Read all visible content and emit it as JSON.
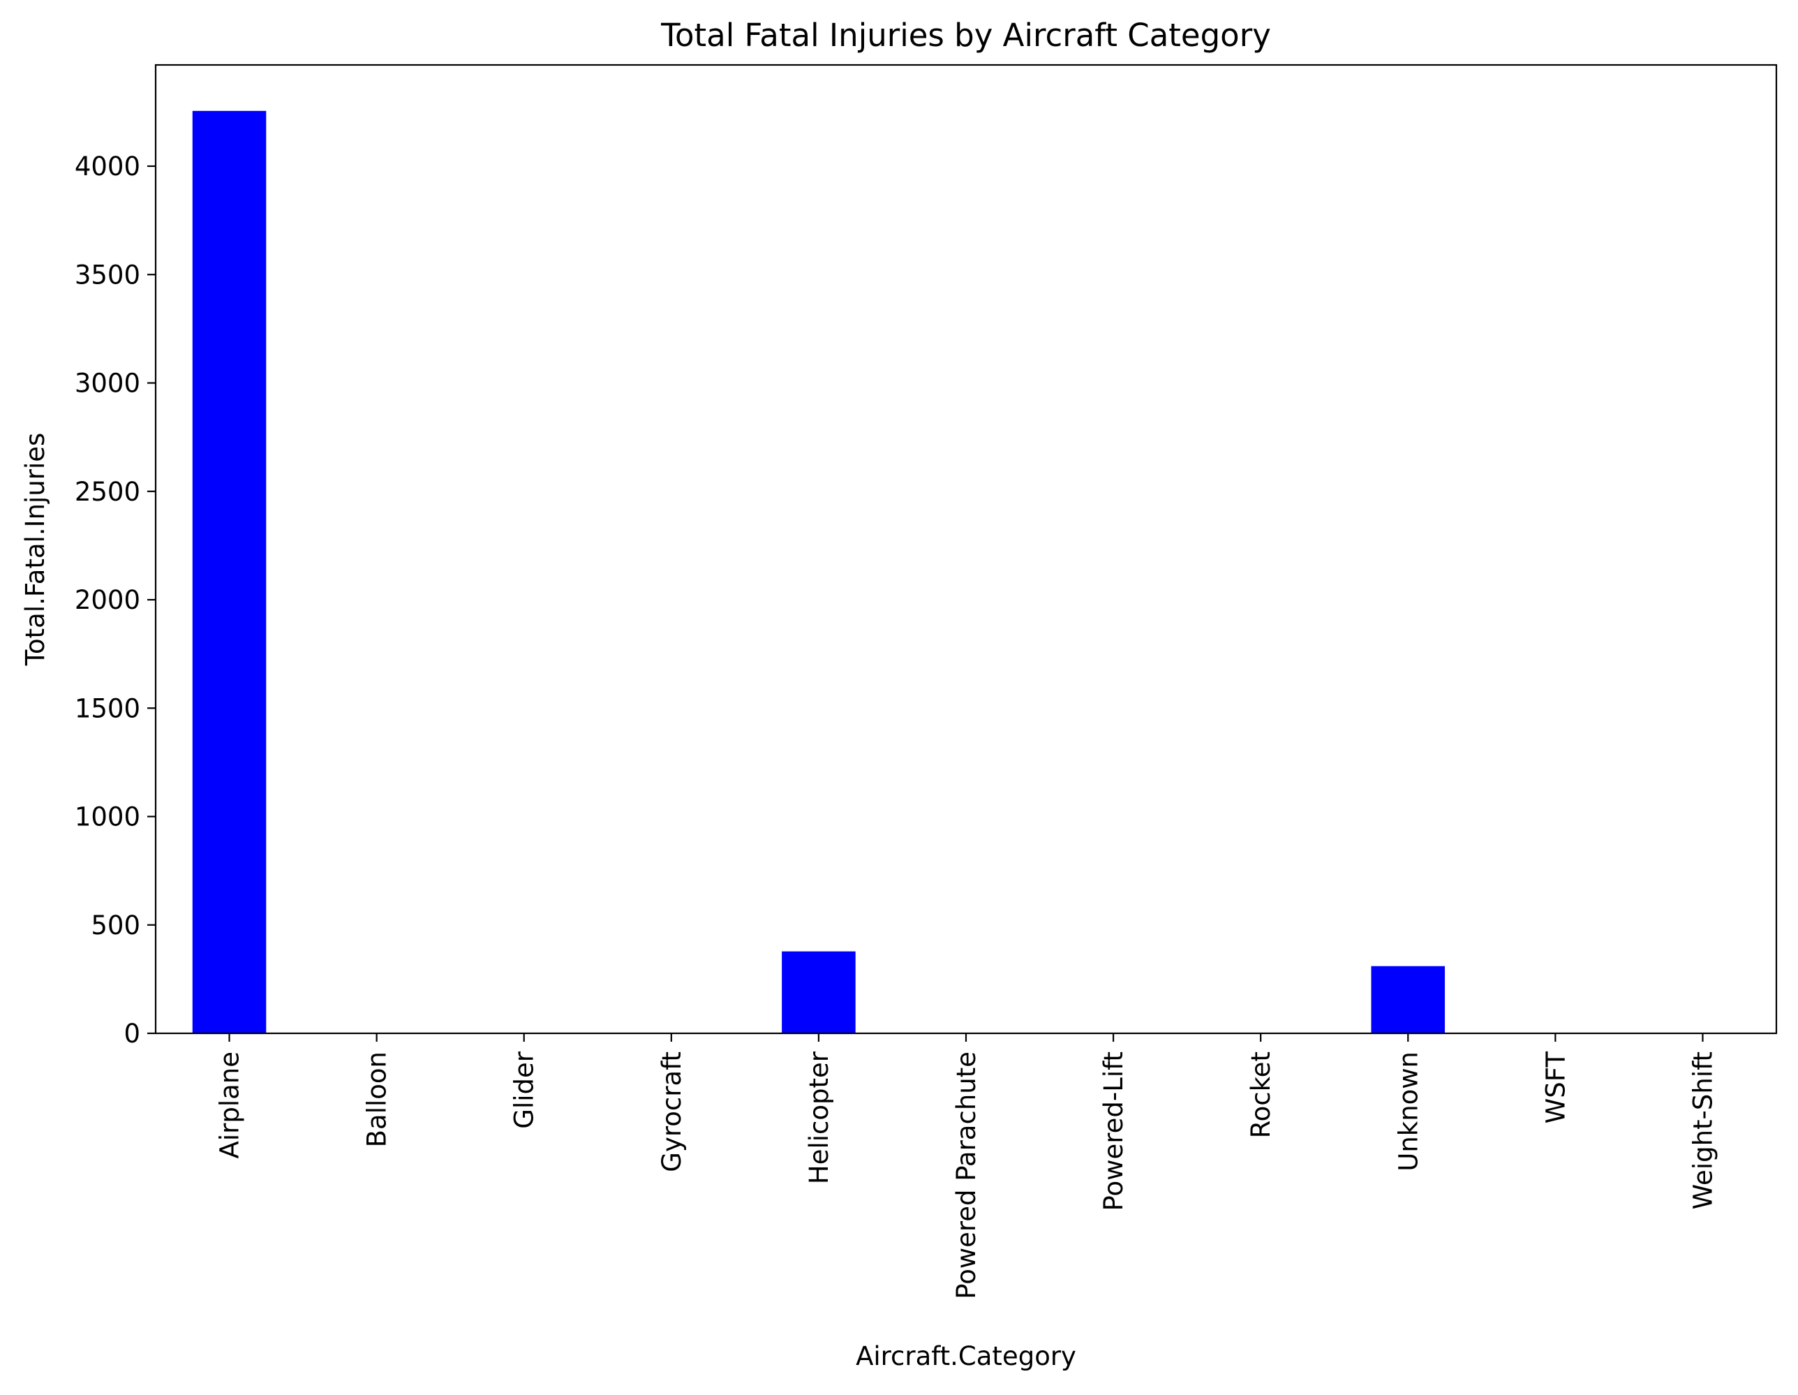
{
  "chart_data": {
    "type": "bar",
    "title": "Total Fatal Injuries by Aircraft Category",
    "xlabel": "Aircraft.Category",
    "ylabel": "Total.Fatal.Injuries",
    "categories": [
      "Airplane",
      "Balloon",
      "Glider",
      "Gyrocraft",
      "Helicopter",
      "Powered Parachute",
      "Powered-Lift",
      "Rocket",
      "Unknown",
      "WSFT",
      "Weight-Shift"
    ],
    "values": [
      4255,
      0,
      0,
      0,
      378,
      0,
      0,
      0,
      310,
      0,
      0
    ],
    "ylim": [
      0,
      4467
    ],
    "yticks": [
      0,
      500,
      1000,
      1500,
      2000,
      2500,
      3000,
      3500,
      4000
    ],
    "bar_color": "#0000ff",
    "grid": false,
    "legend": "none"
  }
}
